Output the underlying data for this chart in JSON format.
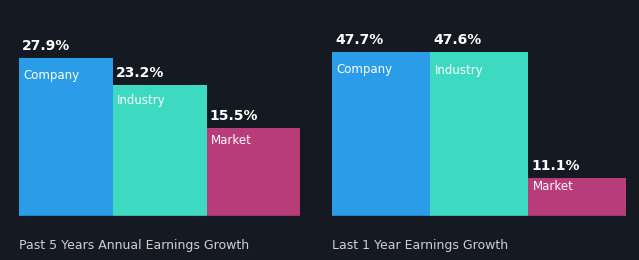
{
  "background_color": "#141922",
  "chart1": {
    "title": "Past 5 Years Annual Earnings Growth",
    "bars": [
      {
        "label": "Company",
        "value": 27.9,
        "color": "#2b9de8"
      },
      {
        "label": "Industry",
        "value": 23.2,
        "color": "#3dd9c0"
      },
      {
        "label": "Market",
        "value": 15.5,
        "color": "#b83b7a"
      }
    ],
    "max_val": 34
  },
  "chart2": {
    "title": "Last 1 Year Earnings Growth",
    "bars": [
      {
        "label": "Company",
        "value": 47.7,
        "color": "#2b9de8"
      },
      {
        "label": "Industry",
        "value": 47.6,
        "color": "#3dd9c0"
      },
      {
        "label": "Market",
        "value": 11.1,
        "color": "#b83b7a"
      }
    ],
    "max_val": 56
  },
  "text_color": "#ffffff",
  "title_color": "#d0d0d0",
  "value_fontsize": 10,
  "label_fontsize": 8.5,
  "title_fontsize": 9,
  "separator_color": "#2a3040"
}
